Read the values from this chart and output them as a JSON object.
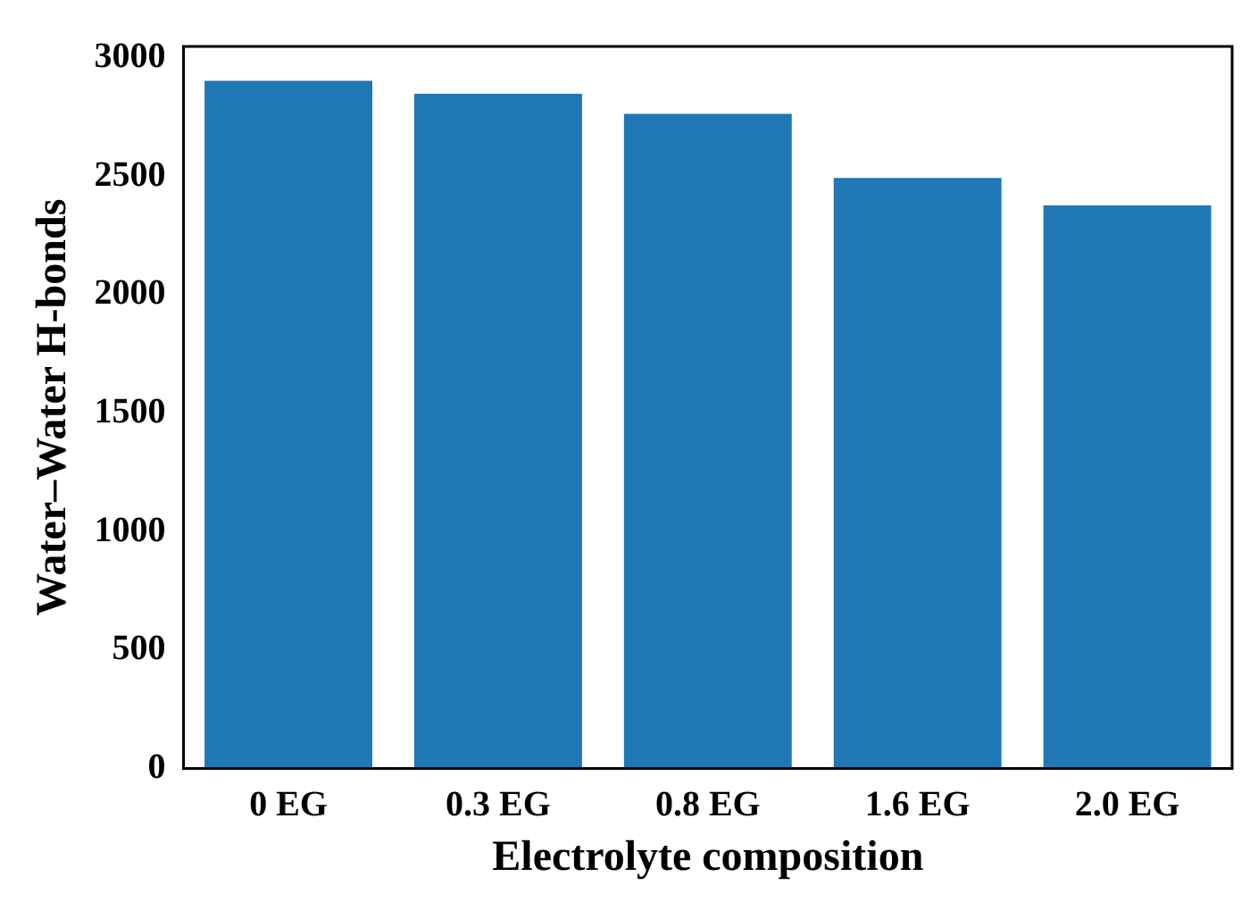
{
  "chart_data": {
    "type": "bar",
    "xlabel": "Electrolyte composition",
    "ylabel": "Water–Water H-bonds",
    "categories": [
      "0 EG",
      "0.3 EG",
      "0.8 EG",
      "1.6 EG",
      "2.0 EG"
    ],
    "values": [
      2903,
      2848,
      2763,
      2493,
      2377
    ],
    "color": "#1f77b4",
    "ylim": [
      0,
      3048
    ],
    "yticks": [
      0,
      500,
      1000,
      1500,
      2000,
      2500,
      3000
    ],
    "grid": false,
    "legend": false
  }
}
